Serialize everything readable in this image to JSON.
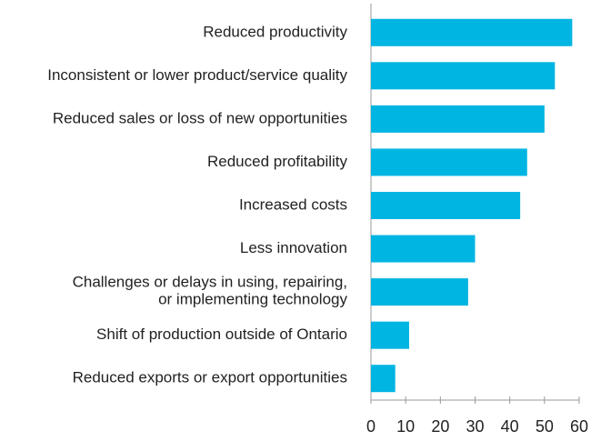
{
  "chart_data": {
    "type": "bar",
    "orientation": "horizontal",
    "categories": [
      "Reduced productivity",
      "Inconsistent or lower product/service quality",
      "Reduced sales or loss of new opportunities",
      "Reduced profitability",
      "Increased costs",
      "Less innovation",
      "Challenges or delays in using, repairing,\nor implementing technology",
      "Shift of production outside of Ontario",
      "Reduced exports or export opportunities"
    ],
    "values": [
      58,
      53,
      50,
      45,
      43,
      30,
      28,
      11,
      7
    ],
    "color": "#00b5e2",
    "xlim": [
      0,
      60
    ],
    "xticks": [
      0,
      10,
      20,
      30,
      40,
      50,
      60
    ],
    "grid": false
  }
}
